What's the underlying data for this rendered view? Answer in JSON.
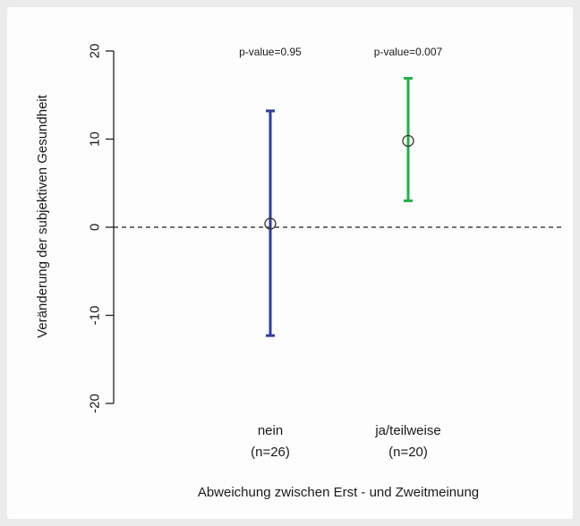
{
  "chart_data": {
    "type": "errorbar",
    "title": "",
    "xlabel": "Abweichung zwischen Erst - und Zweitmeinung",
    "ylabel": "Veränderung der subjektiven Gesundheit",
    "ylim": [
      -20,
      20
    ],
    "yticks": [
      20,
      10,
      0,
      -10,
      -20
    ],
    "ytick_labels": [
      "20",
      "10",
      "0",
      "-10",
      "-20"
    ],
    "reference_line": {
      "y": 0,
      "style": "dashed"
    },
    "grid": false,
    "legend": "none",
    "categories": [
      {
        "name": "nein",
        "n_label": "(n=26)",
        "mean": 0.4,
        "lower": -12.3,
        "upper": 13.2,
        "color": "#2e3d9e",
        "annotation": "p-value=0.95"
      },
      {
        "name": "ja/teilweise",
        "n_label": "(n=20)",
        "mean": 9.8,
        "lower": 3.0,
        "upper": 16.9,
        "color": "#22b04a",
        "annotation": "p-value=0.007"
      }
    ]
  }
}
